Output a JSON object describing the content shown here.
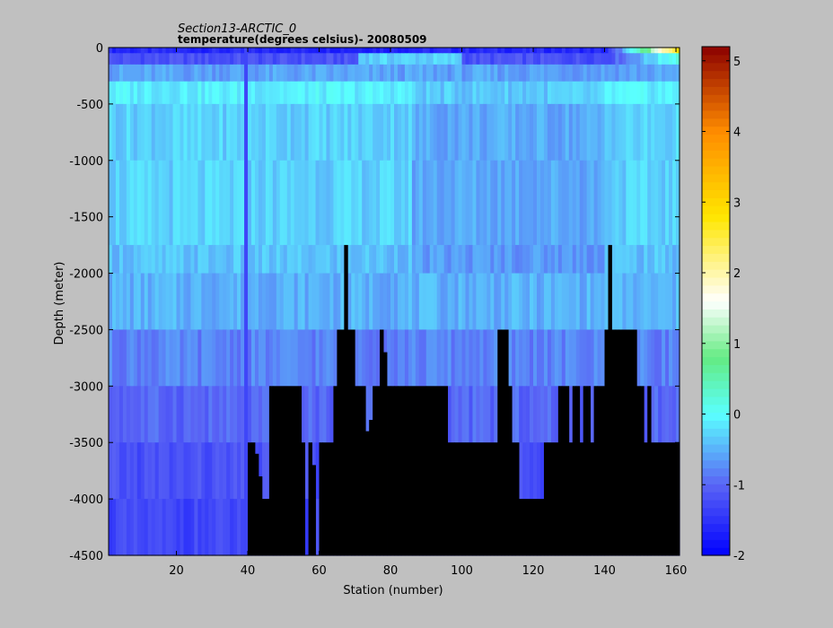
{
  "chart_data": {
    "type": "heatmap",
    "title": "Section13-ARCTIC_0",
    "subtitle": "temperature(degrees  celsius)- 20080509",
    "xlabel": "Station (number)",
    "ylabel": "Depth (meter)",
    "xlim": [
      1,
      161
    ],
    "ylim": [
      -4500,
      0
    ],
    "x_ticks": [
      20,
      40,
      60,
      80,
      100,
      120,
      140,
      160
    ],
    "y_ticks": [
      0,
      -500,
      -1000,
      -1500,
      -2000,
      -2500,
      -3000,
      -3500,
      -4000,
      -4500
    ],
    "colorbar": {
      "min": -2,
      "max": 5.2,
      "ticks": [
        -2,
        -1,
        0,
        1,
        2,
        3,
        4,
        5
      ],
      "colormap": "jet-white-center"
    },
    "depth_levels": [
      0,
      -50,
      -150,
      -300,
      -500,
      -1000,
      -1750,
      -2000,
      -2500,
      -3000,
      -3500,
      -4000,
      -4500
    ],
    "layer_base_temps": [
      -1.6,
      -1.2,
      -0.6,
      -0.1,
      -0.3,
      -0.3,
      -0.4,
      -0.5,
      -0.8,
      -1.0,
      -1.2,
      -1.3
    ],
    "bottom_profile": {
      "stations": [
        1,
        40,
        41,
        42,
        43,
        44,
        46,
        47,
        55,
        56,
        57,
        58,
        59,
        60,
        61,
        64,
        65,
        67,
        68,
        70,
        73,
        74,
        75,
        77,
        78,
        79,
        80,
        81,
        82,
        84,
        90,
        96,
        98,
        110,
        111,
        113,
        114,
        116,
        117,
        123,
        124,
        127,
        128,
        130,
        131,
        132,
        133,
        134,
        136,
        137,
        138,
        140,
        141,
        142,
        143,
        144,
        149,
        150,
        151,
        152,
        153,
        161
      ],
      "depth": [
        -4500,
        -3500,
        -3500,
        -3600,
        -3800,
        -4000,
        -3000,
        -3000,
        -3500,
        -4500,
        -3500,
        -3700,
        -4500,
        -3500,
        -3500,
        -3000,
        -2500,
        -1750,
        -2500,
        -3000,
        -3400,
        -3300,
        -3000,
        -2500,
        -2700,
        -3000,
        -3000,
        -3000,
        -3000,
        -3000,
        -3000,
        -3500,
        -3500,
        -2500,
        -2500,
        -3000,
        -3500,
        -4000,
        -4000,
        -3500,
        -3500,
        -3000,
        -3000,
        -3500,
        -3000,
        -3000,
        -3500,
        -3000,
        -3500,
        -3000,
        -3000,
        -2500,
        -1750,
        -2500,
        -2500,
        -2500,
        -3000,
        -3000,
        -3500,
        -3000,
        -3500,
        -3500
      ]
    },
    "stripe_station": 39,
    "stripe_temp": -1.3
  }
}
